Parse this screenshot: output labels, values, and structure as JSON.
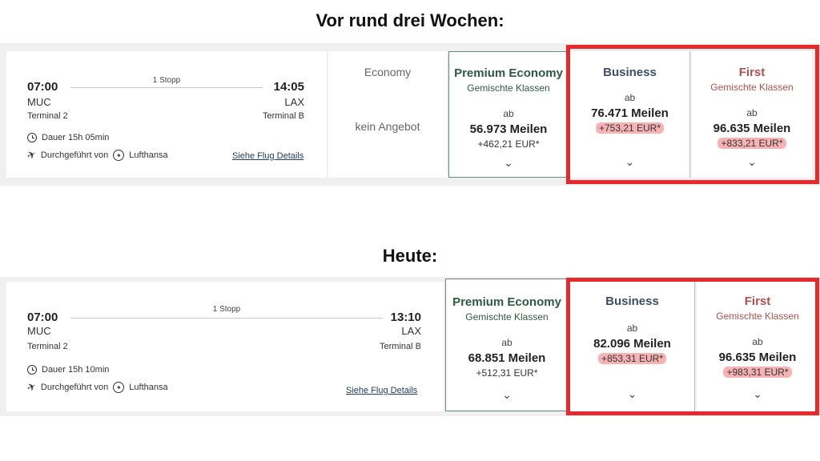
{
  "headings": {
    "before": "Vor rund drei Wochen:",
    "today": "Heute:"
  },
  "icons": {
    "duration": "clock-icon",
    "operated": "plane-icon",
    "airline": "lufthansa-crane-icon",
    "expand": "chevron-down-icon"
  },
  "colors": {
    "highlight_border": "#e8292b",
    "premium_economy": "#2e5a45",
    "business": "#3b4e6a",
    "first": "#b2504e",
    "marker": "#f7b3b3"
  },
  "before": {
    "flight": {
      "dep_time": "07:00",
      "dep_code": "MUC",
      "dep_terminal": "Terminal 2",
      "stops": "1 Stopp",
      "arr_time": "14:05",
      "arr_code": "LAX",
      "arr_terminal": "Terminal B",
      "duration": "Dauer 15h 05min",
      "operated_by": "Durchgeführt von",
      "airline": "Lufthansa",
      "details_link": "Siehe Flug Details"
    },
    "economy": {
      "title": "Economy",
      "status": "kein Angebot"
    },
    "premium_economy": {
      "title": "Premium Economy",
      "sub": "Gemischte Klassen",
      "ab": "ab",
      "miles": "56.973 Meilen",
      "eur": "+462,21 EUR*"
    },
    "business": {
      "title": "Business",
      "ab": "ab",
      "miles": "76.471 Meilen",
      "eur": "+753,21 EUR*"
    },
    "first": {
      "title": "First",
      "sub": "Gemischte Klassen",
      "ab": "ab",
      "miles": "96.635 Meilen",
      "eur": "+833,21 EUR*"
    }
  },
  "today": {
    "flight": {
      "dep_time": "07:00",
      "dep_code": "MUC",
      "dep_terminal": "Terminal 2",
      "stops": "1 Stopp",
      "arr_time": "13:10",
      "arr_code": "LAX",
      "arr_terminal": "Terminal B",
      "duration": "Dauer 15h 10min",
      "operated_by": "Durchgeführt von",
      "airline": "Lufthansa",
      "details_link": "Siehe Flug Details"
    },
    "premium_economy": {
      "title": "Premium Economy",
      "sub": "Gemischte Klassen",
      "ab": "ab",
      "miles": "68.851 Meilen",
      "eur": "+512,31 EUR*"
    },
    "business": {
      "title": "Business",
      "ab": "ab",
      "miles": "82.096 Meilen",
      "eur": "+853,31 EUR*"
    },
    "first": {
      "title": "First",
      "sub": "Gemischte Klassen",
      "ab": "ab",
      "miles": "96.635 Meilen",
      "eur": "+983,31 EUR*"
    }
  }
}
